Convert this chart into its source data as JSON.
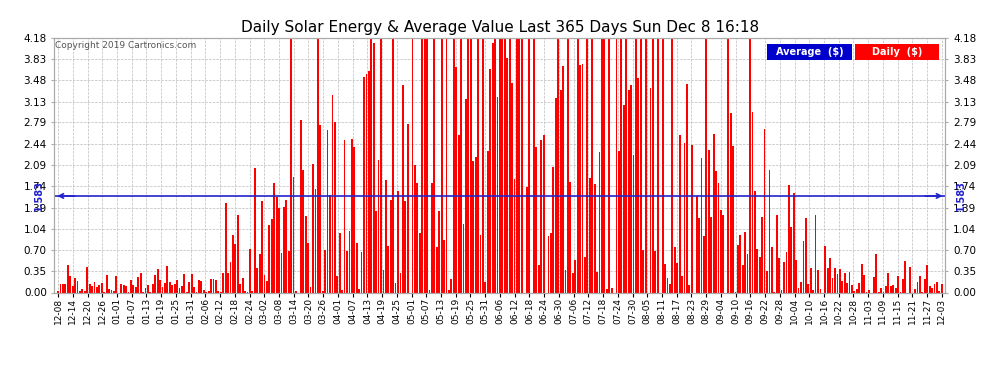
{
  "title": "Daily Solar Energy & Average Value Last 365 Days Sun Dec 8 16:18",
  "copyright": "Copyright 2019 Cartronics.com",
  "average_label": "Average  ($)",
  "daily_label": "Daily  ($)",
  "average_value": 1.583,
  "ylim": [
    0.0,
    4.18
  ],
  "yticks": [
    0.0,
    0.35,
    0.7,
    1.04,
    1.39,
    1.74,
    2.09,
    2.44,
    2.79,
    3.13,
    3.48,
    3.83,
    4.18
  ],
  "bar_color": "#ff0000",
  "average_line_color": "#2222cc",
  "bg_color": "#ffffff",
  "grid_color": "#bbbbbb",
  "title_color": "#000000",
  "legend_avg_bg": "#0000cc",
  "legend_daily_bg": "#ff0000",
  "legend_text_color": "#ffffff",
  "bar_width": 0.75,
  "figsize": [
    9.9,
    3.75
  ],
  "dpi": 100,
  "xtick_labels": [
    "12-08",
    "12-14",
    "12-20",
    "12-26",
    "01-01",
    "01-07",
    "01-13",
    "01-19",
    "01-25",
    "01-31",
    "02-06",
    "02-12",
    "02-18",
    "02-24",
    "03-02",
    "03-08",
    "03-14",
    "03-20",
    "03-26",
    "04-01",
    "04-07",
    "04-13",
    "04-19",
    "04-25",
    "05-01",
    "05-07",
    "05-13",
    "05-19",
    "05-25",
    "05-31",
    "06-06",
    "06-12",
    "06-18",
    "06-24",
    "06-30",
    "07-06",
    "07-12",
    "07-18",
    "07-24",
    "07-30",
    "08-05",
    "08-11",
    "08-17",
    "08-23",
    "08-29",
    "09-04",
    "09-10",
    "09-16",
    "09-22",
    "09-28",
    "10-04",
    "10-10",
    "10-16",
    "10-22",
    "10-28",
    "11-03",
    "11-09",
    "11-15",
    "11-21",
    "11-27",
    "12-03"
  ],
  "seed": 42
}
